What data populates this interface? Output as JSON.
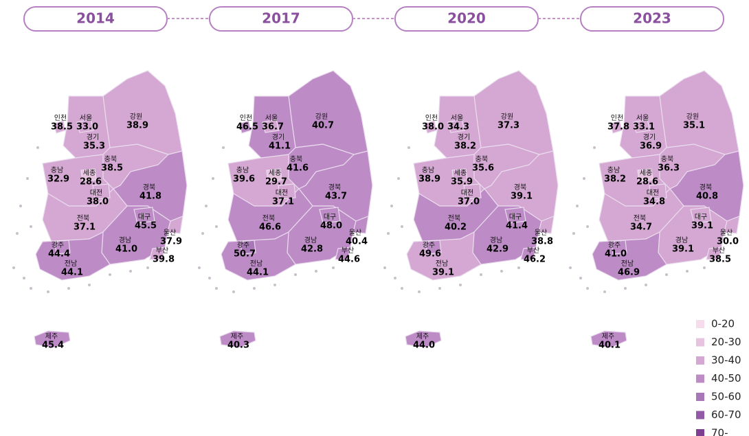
{
  "maps": [
    {
      "year": "2014",
      "regions": [
        {
          "name": "인천",
          "value": 38.5
        },
        {
          "name": "서울",
          "value": 33.0,
          "label": "33.0"
        },
        {
          "name": "강원",
          "value": 38.9
        },
        {
          "name": "경기",
          "value": 35.3
        },
        {
          "name": "충남",
          "value": 32.9
        },
        {
          "name": "세종",
          "value": 28.6
        },
        {
          "name": "충북",
          "value": 38.5
        },
        {
          "name": "경북",
          "value": 41.8
        },
        {
          "name": "대전",
          "value": 38.0,
          "label": "38.0"
        },
        {
          "name": "전북",
          "value": 37.1
        },
        {
          "name": "대구",
          "value": 45.5
        },
        {
          "name": "울산",
          "value": 37.9
        },
        {
          "name": "광주",
          "value": 44.4
        },
        {
          "name": "경남",
          "value": 41.0,
          "label": "41.0"
        },
        {
          "name": "부산",
          "value": 39.8
        },
        {
          "name": "전남",
          "value": 44.1
        },
        {
          "name": "제주",
          "value": 45.4
        }
      ]
    },
    {
      "year": "2017",
      "regions": [
        {
          "name": "인천",
          "value": 46.5
        },
        {
          "name": "서울",
          "value": 36.7
        },
        {
          "name": "강원",
          "value": 40.7
        },
        {
          "name": "경기",
          "value": 41.1
        },
        {
          "name": "충남",
          "value": 39.6
        },
        {
          "name": "세종",
          "value": 29.7
        },
        {
          "name": "충북",
          "value": 41.6
        },
        {
          "name": "경북",
          "value": 43.7
        },
        {
          "name": "대전",
          "value": 37.1
        },
        {
          "name": "전북",
          "value": 46.6
        },
        {
          "name": "대구",
          "value": 48.0,
          "label": "48.0"
        },
        {
          "name": "울산",
          "value": 40.4
        },
        {
          "name": "광주",
          "value": 50.7
        },
        {
          "name": "경남",
          "value": 42.8
        },
        {
          "name": "부산",
          "value": 44.6
        },
        {
          "name": "전남",
          "value": 44.1
        },
        {
          "name": "제주",
          "value": 40.3
        }
      ]
    },
    {
      "year": "2020",
      "regions": [
        {
          "name": "인천",
          "value": 38.0,
          "label": "38.0"
        },
        {
          "name": "서울",
          "value": 34.3
        },
        {
          "name": "강원",
          "value": 37.3
        },
        {
          "name": "경기",
          "value": 38.2
        },
        {
          "name": "충남",
          "value": 38.9
        },
        {
          "name": "세종",
          "value": 35.9
        },
        {
          "name": "충북",
          "value": 35.6
        },
        {
          "name": "경북",
          "value": 39.1
        },
        {
          "name": "대전",
          "value": 37.0,
          "label": "37.0"
        },
        {
          "name": "전북",
          "value": 40.2
        },
        {
          "name": "대구",
          "value": 41.4
        },
        {
          "name": "울산",
          "value": 38.8
        },
        {
          "name": "광주",
          "value": 49.6
        },
        {
          "name": "경남",
          "value": 42.9
        },
        {
          "name": "부산",
          "value": 46.2
        },
        {
          "name": "전남",
          "value": 39.1
        },
        {
          "name": "제주",
          "value": 44.0,
          "label": "44.0"
        }
      ]
    },
    {
      "year": "2023",
      "regions": [
        {
          "name": "인천",
          "value": 37.8
        },
        {
          "name": "서울",
          "value": 33.1
        },
        {
          "name": "강원",
          "value": 35.1
        },
        {
          "name": "경기",
          "value": 36.9
        },
        {
          "name": "충남",
          "value": 38.2
        },
        {
          "name": "세종",
          "value": 28.6
        },
        {
          "name": "충북",
          "value": 36.3
        },
        {
          "name": "경북",
          "value": 40.8
        },
        {
          "name": "대전",
          "value": 34.8
        },
        {
          "name": "전북",
          "value": 34.7
        },
        {
          "name": "대구",
          "value": 39.1
        },
        {
          "name": "울산",
          "value": 30.0,
          "label": "30.0"
        },
        {
          "name": "광주",
          "value": 41.0,
          "label": "41.0"
        },
        {
          "name": "경남",
          "value": 39.1
        },
        {
          "name": "부산",
          "value": 38.5
        },
        {
          "name": "전남",
          "value": 46.9
        },
        {
          "name": "제주",
          "value": 40.1
        }
      ]
    }
  ],
  "legend": [
    {
      "label": "0-20",
      "color": "#f6dcec"
    },
    {
      "label": "20-30",
      "color": "#e8c3df"
    },
    {
      "label": "30-40",
      "color": "#d4a8d2"
    },
    {
      "label": "40-50",
      "color": "#bd8cc6"
    },
    {
      "label": "50-60",
      "color": "#a877b8"
    },
    {
      "label": "60-70",
      "color": "#9259a6"
    },
    {
      "label": "70-",
      "color": "#7e3f93"
    }
  ]
}
